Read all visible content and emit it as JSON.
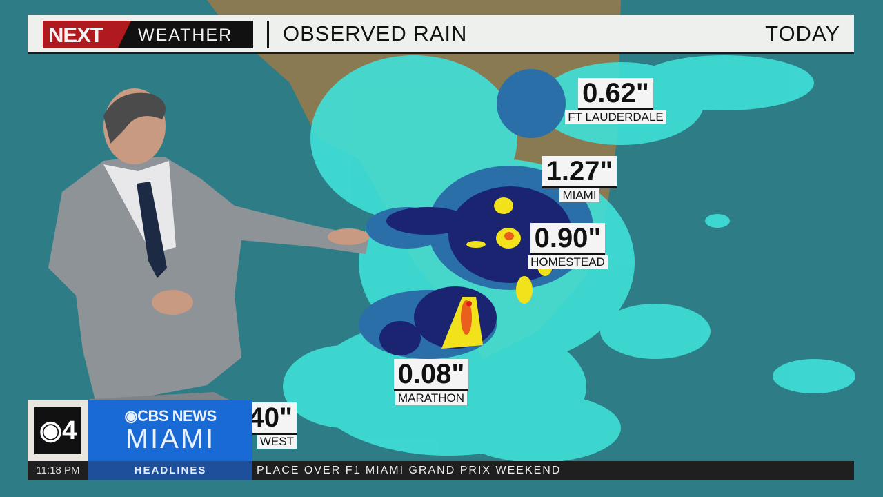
{
  "header": {
    "logo_next": "NEXT",
    "logo_weather": "WEATHER",
    "title": "OBSERVED RAIN",
    "period": "TODAY"
  },
  "rain_totals": [
    {
      "value": "0.62\"",
      "city": "FT LAUDERDALE"
    },
    {
      "value": "1.27\"",
      "city": "MIAMI"
    },
    {
      "value": "0.90\"",
      "city": "HOMESTEAD"
    },
    {
      "value": "0.08\"",
      "city": "MARATHON"
    },
    {
      "value": "40\"",
      "city": "WEST"
    }
  ],
  "lower_third": {
    "channel": "4",
    "brand_top": "CBS NEWS",
    "brand_bottom": "MIAMI",
    "time": "11:18 PM",
    "section": "HEADLINES",
    "crawl": "PLACE OVER F1 MIAMI GRAND PRIX WEEKEND"
  },
  "colors": {
    "ocean": "#2e7c86",
    "land": "#8a7a52",
    "light_rain": "#3fe0d8",
    "moderate_rain": "#2a6fa8",
    "heavy_rain": "#1a2470",
    "intense_rain": "#f2e21c",
    "extreme_rain": "#e8601c",
    "brand_blue": "#1a6ad6",
    "next_red": "#b01a1f"
  }
}
